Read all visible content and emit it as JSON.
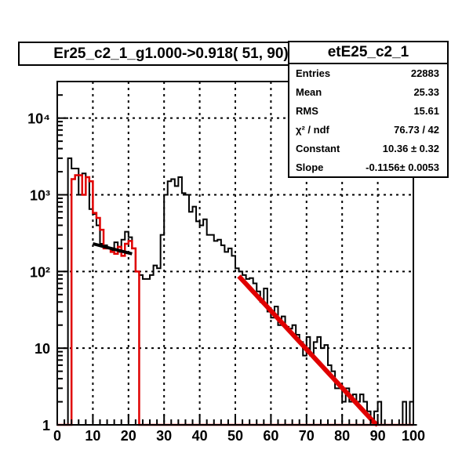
{
  "chart_data": {
    "type": "histogram",
    "title": "Er25_c2_1_g1.000->0.918( 51, 90)",
    "stats": {
      "name": "etE25_c2_1",
      "rows": [
        {
          "label": "Entries",
          "value": "22883"
        },
        {
          "label": "Mean",
          "value": "25.33"
        },
        {
          "label": "RMS",
          "value": "15.61"
        },
        {
          "label": "χ² / ndf",
          "value": "76.73 / 42"
        },
        {
          "label": "Constant",
          "value": "10.36 ± 0.32"
        },
        {
          "label": "Slope",
          "value": "-0.1156± 0.0053"
        }
      ]
    },
    "x_axis": {
      "min": 0,
      "max": 100,
      "scale": "linear",
      "ticks": [
        "0",
        "10",
        "20",
        "30",
        "40",
        "50",
        "60",
        "70",
        "80",
        "90",
        "100"
      ],
      "tick_values": [
        0,
        10,
        20,
        30,
        40,
        50,
        60,
        70,
        80,
        90,
        100
      ]
    },
    "y_axis": {
      "min": 1,
      "max": 30000,
      "scale": "log",
      "ticks": [
        "1",
        "10",
        "10²",
        "10³",
        "10⁴"
      ],
      "tick_values": [
        1,
        10,
        100,
        1000,
        10000
      ]
    },
    "grid": true,
    "bin_width": 1,
    "series": [
      {
        "color": "#000000",
        "values": [
          0,
          0,
          0,
          3000,
          2200,
          2200,
          1000,
          1900,
          1700,
          650,
          560,
          400,
          230,
          220,
          200,
          190,
          240,
          180,
          260,
          330,
          280,
          200,
          100,
          90,
          80,
          80,
          90,
          120,
          110,
          300,
          1000,
          1500,
          1600,
          1300,
          1700,
          1050,
          1000,
          600,
          700,
          450,
          400,
          480,
          300,
          300,
          250,
          260,
          220,
          180,
          200,
          160,
          110,
          100,
          90,
          80,
          82,
          70,
          55,
          40,
          60,
          30,
          25,
          35,
          20,
          26,
          19,
          18,
          20,
          15,
          12,
          8,
          14,
          8,
          12,
          14,
          10,
          11,
          6,
          5,
          3,
          3,
          2,
          3,
          2,
          2.5,
          2,
          2.5,
          2,
          1.5,
          1,
          1.5,
          2,
          1,
          0,
          0,
          0,
          0,
          1,
          2,
          1,
          2,
          1
        ]
      },
      {
        "color": "#e00000",
        "values": [
          0,
          0,
          0,
          0,
          1600,
          1800,
          1800,
          1000,
          1700,
          1500,
          580,
          500,
          350,
          200,
          200,
          180,
          170,
          210,
          160,
          230,
          250,
          200,
          100,
          0,
          0,
          0,
          0,
          0,
          0,
          0,
          0,
          0,
          0,
          0,
          0,
          0,
          0,
          0,
          0,
          0,
          0,
          0,
          0,
          0,
          0,
          0,
          0,
          0,
          0,
          0,
          0,
          0,
          0,
          0,
          0,
          0,
          0,
          0,
          0,
          0,
          0,
          0,
          0,
          0,
          0,
          0,
          0,
          0,
          0,
          0,
          0,
          0,
          0,
          0,
          0,
          0,
          0,
          0,
          0,
          0,
          0,
          0,
          0,
          0,
          0,
          0,
          0,
          0,
          0,
          0,
          0,
          0,
          0,
          0,
          0,
          0,
          0,
          0,
          0,
          0
        ]
      }
    ],
    "fits": [
      {
        "color": "#e00000",
        "x_range": [
          51,
          90
        ],
        "constant": 10.36,
        "slope": -0.1156
      },
      {
        "color": "#000000",
        "x_range": [
          10,
          21
        ],
        "points": [
          [
            10,
            230
          ],
          [
            21,
            170
          ]
        ]
      }
    ]
  }
}
